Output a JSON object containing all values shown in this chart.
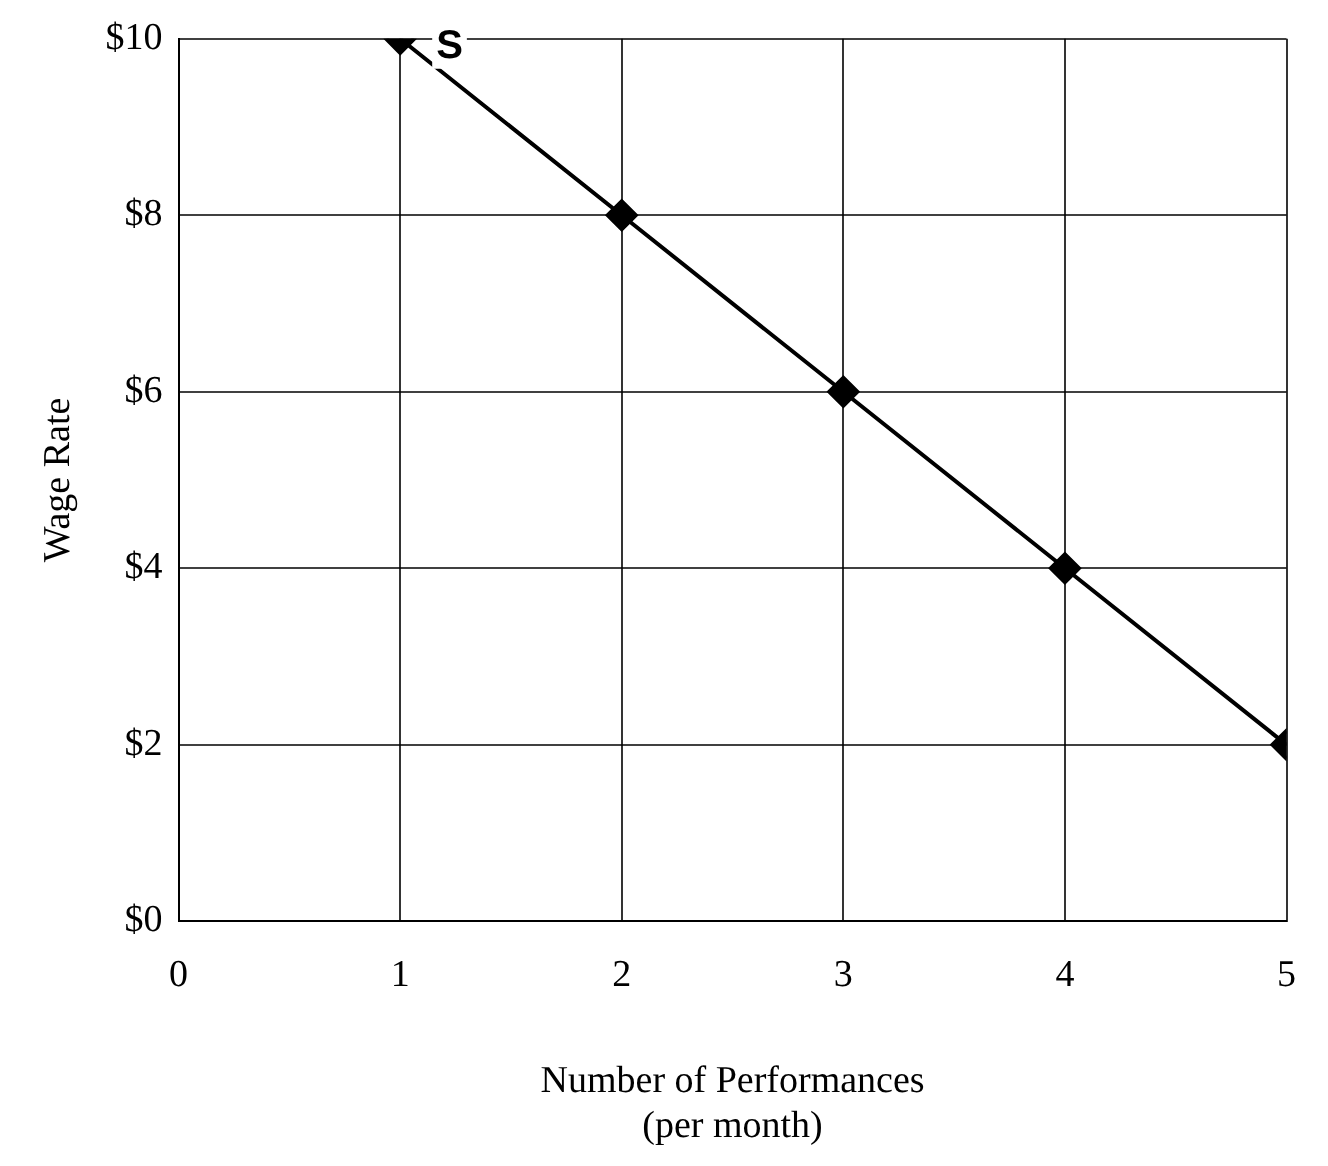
{
  "chart_data": {
    "type": "line",
    "xlabel": "Number of Performances\n(per month)",
    "ylabel": "Wage Rate",
    "x": [
      1,
      2,
      3,
      4,
      5
    ],
    "series": [
      {
        "color": "#000000",
        "values": [
          10,
          8,
          6,
          4,
          2
        ]
      }
    ],
    "xlim": [
      0,
      5
    ],
    "xticks": [
      0,
      1,
      2,
      3,
      4,
      5
    ],
    "ylim": [
      0,
      10
    ],
    "yticks": [
      {
        "value": 0,
        "label": "$0"
      },
      {
        "value": 2,
        "label": "$2"
      },
      {
        "value": 4,
        "label": "$4"
      },
      {
        "value": 6,
        "label": "$6"
      },
      {
        "value": 8,
        "label": "$8"
      },
      {
        "value": 10,
        "label": "$10"
      }
    ],
    "grid": true,
    "legend": false,
    "marker": "diamond",
    "line_style": "solid",
    "annotations": [
      {
        "text": "S",
        "x": 1,
        "y": 10
      }
    ]
  }
}
